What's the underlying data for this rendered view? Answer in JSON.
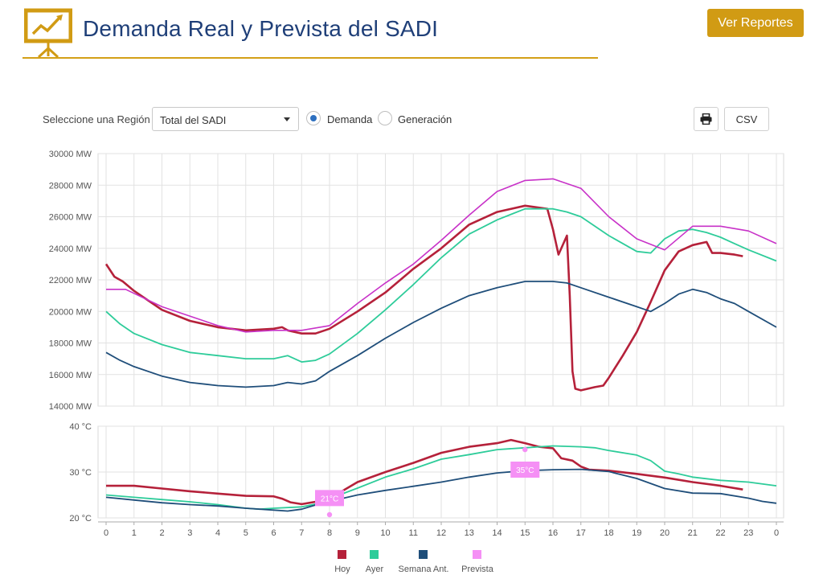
{
  "header": {
    "title": "Demanda Real y Prevista del SADI",
    "reports_button": "Ver Reportes"
  },
  "controls": {
    "region_label": "Seleccione una Región",
    "region_selected": "Total del SADI",
    "radio_demand": "Demanda",
    "radio_generation": "Generación",
    "selected_radio": "Demanda",
    "csv_button": "CSV"
  },
  "colors": {
    "hoy": "#b5213a",
    "ayer": "#2ecc9a",
    "semana": "#1f4e7a",
    "prevista": "#c832c8",
    "prevista_marker": "#f590f5",
    "accent": "#d19b14",
    "title": "#1f3f78"
  },
  "chart_data": [
    {
      "type": "line",
      "title": "Demanda Real y Prevista del SADI",
      "ylabel": "MW",
      "xlabel": "",
      "ylim": [
        14000,
        30000
      ],
      "yticks": [
        "30000 MW",
        "28000 MW",
        "26000 MW",
        "24000 MW",
        "22000 MW",
        "20000 MW",
        "18000 MW",
        "16000 MW",
        "14000 MW"
      ],
      "ytick_values": [
        30000,
        28000,
        26000,
        24000,
        22000,
        20000,
        18000,
        16000,
        14000
      ],
      "xlim": [
        0,
        24
      ],
      "xticks": [
        "0",
        "1",
        "2",
        "3",
        "4",
        "5",
        "6",
        "7",
        "8",
        "9",
        "10",
        "11",
        "12",
        "13",
        "14",
        "15",
        "16",
        "17",
        "18",
        "19",
        "20",
        "21",
        "22",
        "23",
        "0"
      ],
      "series": [
        {
          "name": "Hoy",
          "key": "hoy",
          "points": [
            [
              0,
              23000
            ],
            [
              0.3,
              22200
            ],
            [
              0.6,
              21900
            ],
            [
              1,
              21300
            ],
            [
              2,
              20100
            ],
            [
              3,
              19400
            ],
            [
              4,
              19000
            ],
            [
              5,
              18800
            ],
            [
              6,
              18900
            ],
            [
              6.3,
              19000
            ],
            [
              6.5,
              18800
            ],
            [
              7,
              18600
            ],
            [
              7.5,
              18600
            ],
            [
              8,
              18900
            ],
            [
              9,
              20000
            ],
            [
              10,
              21200
            ],
            [
              11,
              22700
            ],
            [
              12,
              24000
            ],
            [
              13,
              25500
            ],
            [
              14,
              26300
            ],
            [
              15,
              26700
            ],
            [
              15.8,
              26500
            ],
            [
              16,
              25200
            ],
            [
              16.2,
              23600
            ],
            [
              16.5,
              24800
            ],
            [
              16.6,
              21000
            ],
            [
              16.7,
              16200
            ],
            [
              16.8,
              15100
            ],
            [
              17,
              15000
            ],
            [
              17.5,
              15200
            ],
            [
              17.8,
              15300
            ],
            [
              18,
              15800
            ],
            [
              18.5,
              17200
            ],
            [
              19,
              18700
            ],
            [
              19.5,
              20600
            ],
            [
              20,
              22600
            ],
            [
              20.5,
              23800
            ],
            [
              21,
              24200
            ],
            [
              21.5,
              24400
            ],
            [
              21.7,
              23700
            ],
            [
              22,
              23700
            ],
            [
              22.5,
              23600
            ],
            [
              22.8,
              23500
            ]
          ]
        },
        {
          "name": "Ayer",
          "key": "ayer",
          "points": [
            [
              0,
              20000
            ],
            [
              0.5,
              19200
            ],
            [
              1,
              18600
            ],
            [
              2,
              17900
            ],
            [
              3,
              17400
            ],
            [
              4,
              17200
            ],
            [
              5,
              17000
            ],
            [
              6,
              17000
            ],
            [
              6.5,
              17200
            ],
            [
              7,
              16800
            ],
            [
              7.5,
              16900
            ],
            [
              8,
              17300
            ],
            [
              9,
              18600
            ],
            [
              10,
              20100
            ],
            [
              11,
              21700
            ],
            [
              12,
              23400
            ],
            [
              13,
              24900
            ],
            [
              14,
              25800
            ],
            [
              15,
              26500
            ],
            [
              15.5,
              26500
            ],
            [
              16,
              26500
            ],
            [
              16.5,
              26300
            ],
            [
              17,
              26000
            ],
            [
              18,
              24800
            ],
            [
              19,
              23800
            ],
            [
              19.5,
              23700
            ],
            [
              20,
              24600
            ],
            [
              20.5,
              25100
            ],
            [
              21,
              25200
            ],
            [
              21.5,
              25000
            ],
            [
              22,
              24700
            ],
            [
              22.5,
              24300
            ],
            [
              23,
              23900
            ],
            [
              24,
              23200
            ]
          ]
        },
        {
          "name": "Semana Ant.",
          "key": "semana",
          "points": [
            [
              0,
              17400
            ],
            [
              0.5,
              16900
            ],
            [
              1,
              16500
            ],
            [
              2,
              15900
            ],
            [
              3,
              15500
            ],
            [
              4,
              15300
            ],
            [
              5,
              15200
            ],
            [
              6,
              15300
            ],
            [
              6.5,
              15500
            ],
            [
              7,
              15400
            ],
            [
              7.5,
              15600
            ],
            [
              8,
              16200
            ],
            [
              9,
              17200
            ],
            [
              10,
              18300
            ],
            [
              11,
              19300
            ],
            [
              12,
              20200
            ],
            [
              13,
              21000
            ],
            [
              14,
              21500
            ],
            [
              15,
              21900
            ],
            [
              15.5,
              21900
            ],
            [
              16,
              21900
            ],
            [
              16.5,
              21800
            ],
            [
              17,
              21500
            ],
            [
              18,
              20900
            ],
            [
              19,
              20300
            ],
            [
              19.5,
              20000
            ],
            [
              20,
              20500
            ],
            [
              20.5,
              21100
            ],
            [
              21,
              21400
            ],
            [
              21.5,
              21200
            ],
            [
              22,
              20800
            ],
            [
              22.5,
              20500
            ],
            [
              23,
              20000
            ],
            [
              24,
              19000
            ]
          ]
        },
        {
          "name": "Prevista",
          "key": "prevista",
          "points": [
            [
              0,
              21400
            ],
            [
              0.7,
              21400
            ],
            [
              2,
              20300
            ],
            [
              3,
              19700
            ],
            [
              4,
              19100
            ],
            [
              5,
              18700
            ],
            [
              6,
              18800
            ],
            [
              7,
              18800
            ],
            [
              8,
              19100
            ],
            [
              9,
              20500
            ],
            [
              10,
              21800
            ],
            [
              11,
              23000
            ],
            [
              12,
              24500
            ],
            [
              13,
              26100
            ],
            [
              14,
              27600
            ],
            [
              15,
              28300
            ],
            [
              16,
              28400
            ],
            [
              17,
              27800
            ],
            [
              18,
              26000
            ],
            [
              19,
              24600
            ],
            [
              20,
              23900
            ],
            [
              21,
              25400
            ],
            [
              22,
              25400
            ],
            [
              23,
              25100
            ],
            [
              24,
              24300
            ]
          ]
        }
      ]
    },
    {
      "type": "line",
      "title": "",
      "ylabel": "°C",
      "ylim": [
        20,
        40
      ],
      "yticks": [
        "40 °C",
        "30 °C",
        "20 °C"
      ],
      "ytick_values": [
        40,
        30,
        20
      ],
      "xlim": [
        0,
        24
      ],
      "series": [
        {
          "name": "Hoy",
          "key": "hoy",
          "points": [
            [
              0,
              27
            ],
            [
              1,
              27
            ],
            [
              2,
              26.4
            ],
            [
              3,
              25.8
            ],
            [
              4,
              25.3
            ],
            [
              5,
              24.8
            ],
            [
              6,
              24.7
            ],
            [
              6.3,
              24.2
            ],
            [
              6.6,
              23.4
            ],
            [
              7,
              23
            ],
            [
              7.5,
              23.5
            ],
            [
              8,
              24.3
            ],
            [
              8.5,
              26
            ],
            [
              9,
              27.8
            ],
            [
              10,
              30
            ],
            [
              11,
              32
            ],
            [
              12,
              34.2
            ],
            [
              13,
              35.5
            ],
            [
              14,
              36.3
            ],
            [
              14.5,
              37
            ],
            [
              15,
              36.3
            ],
            [
              15.5,
              35.5
            ],
            [
              16,
              35.2
            ],
            [
              16.3,
              33
            ],
            [
              16.7,
              32.5
            ],
            [
              17,
              31.2
            ],
            [
              17.3,
              30.5
            ],
            [
              18,
              30.3
            ],
            [
              19,
              29.6
            ],
            [
              20,
              28.8
            ],
            [
              21,
              27.8
            ],
            [
              22,
              27
            ],
            [
              22.8,
              26.2
            ]
          ]
        },
        {
          "name": "Ayer",
          "key": "ayer",
          "points": [
            [
              0,
              25
            ],
            [
              1,
              24.5
            ],
            [
              2,
              24
            ],
            [
              3,
              23.5
            ],
            [
              4,
              22.9
            ],
            [
              5,
              22.1
            ],
            [
              5.5,
              21.9
            ],
            [
              6,
              22.1
            ],
            [
              7,
              22.4
            ],
            [
              7.5,
              23
            ],
            [
              8,
              24.2
            ],
            [
              9,
              26.5
            ],
            [
              10,
              28.9
            ],
            [
              11,
              30.7
            ],
            [
              12,
              32.8
            ],
            [
              13,
              33.8
            ],
            [
              14,
              34.9
            ],
            [
              15,
              35.3
            ],
            [
              16,
              35.7
            ],
            [
              17,
              35.5
            ],
            [
              17.5,
              35.3
            ],
            [
              18,
              34.7
            ],
            [
              19,
              33.7
            ],
            [
              19.5,
              32.5
            ],
            [
              20,
              30.2
            ],
            [
              20.5,
              29.6
            ],
            [
              21,
              28.9
            ],
            [
              22,
              28.2
            ],
            [
              23,
              27.8
            ],
            [
              24,
              27
            ]
          ]
        },
        {
          "name": "Semana Ant.",
          "key": "semana",
          "points": [
            [
              0,
              24.5
            ],
            [
              1,
              23.9
            ],
            [
              2,
              23.3
            ],
            [
              3,
              22.9
            ],
            [
              4,
              22.6
            ],
            [
              5,
              22.1
            ],
            [
              6,
              21.7
            ],
            [
              6.5,
              21.5
            ],
            [
              7,
              21.9
            ],
            [
              7.5,
              22.8
            ],
            [
              8,
              23.6
            ],
            [
              9,
              25
            ],
            [
              10,
              26
            ],
            [
              11,
              26.9
            ],
            [
              12,
              27.8
            ],
            [
              13,
              28.9
            ],
            [
              14,
              29.8
            ],
            [
              15,
              30.3
            ],
            [
              16,
              30.5
            ],
            [
              17,
              30.6
            ],
            [
              18,
              30.1
            ],
            [
              19,
              28.6
            ],
            [
              20,
              26.4
            ],
            [
              21,
              25.4
            ],
            [
              22,
              25.3
            ],
            [
              23,
              24.3
            ],
            [
              23.5,
              23.6
            ],
            [
              24,
              23.2
            ]
          ]
        }
      ],
      "forecast_markers": [
        {
          "x": 8,
          "y": 24.5,
          "label": "21°C",
          "min": 20.7
        },
        {
          "x": 15,
          "y": 30.7,
          "label": "35°C",
          "max": 34.9
        }
      ]
    }
  ],
  "legend": [
    {
      "label": "Hoy",
      "key": "hoy"
    },
    {
      "label": "Ayer",
      "key": "ayer"
    },
    {
      "label": "Semana Ant.",
      "key": "semana"
    },
    {
      "label": "Prevista",
      "key": "prevista_marker"
    }
  ]
}
